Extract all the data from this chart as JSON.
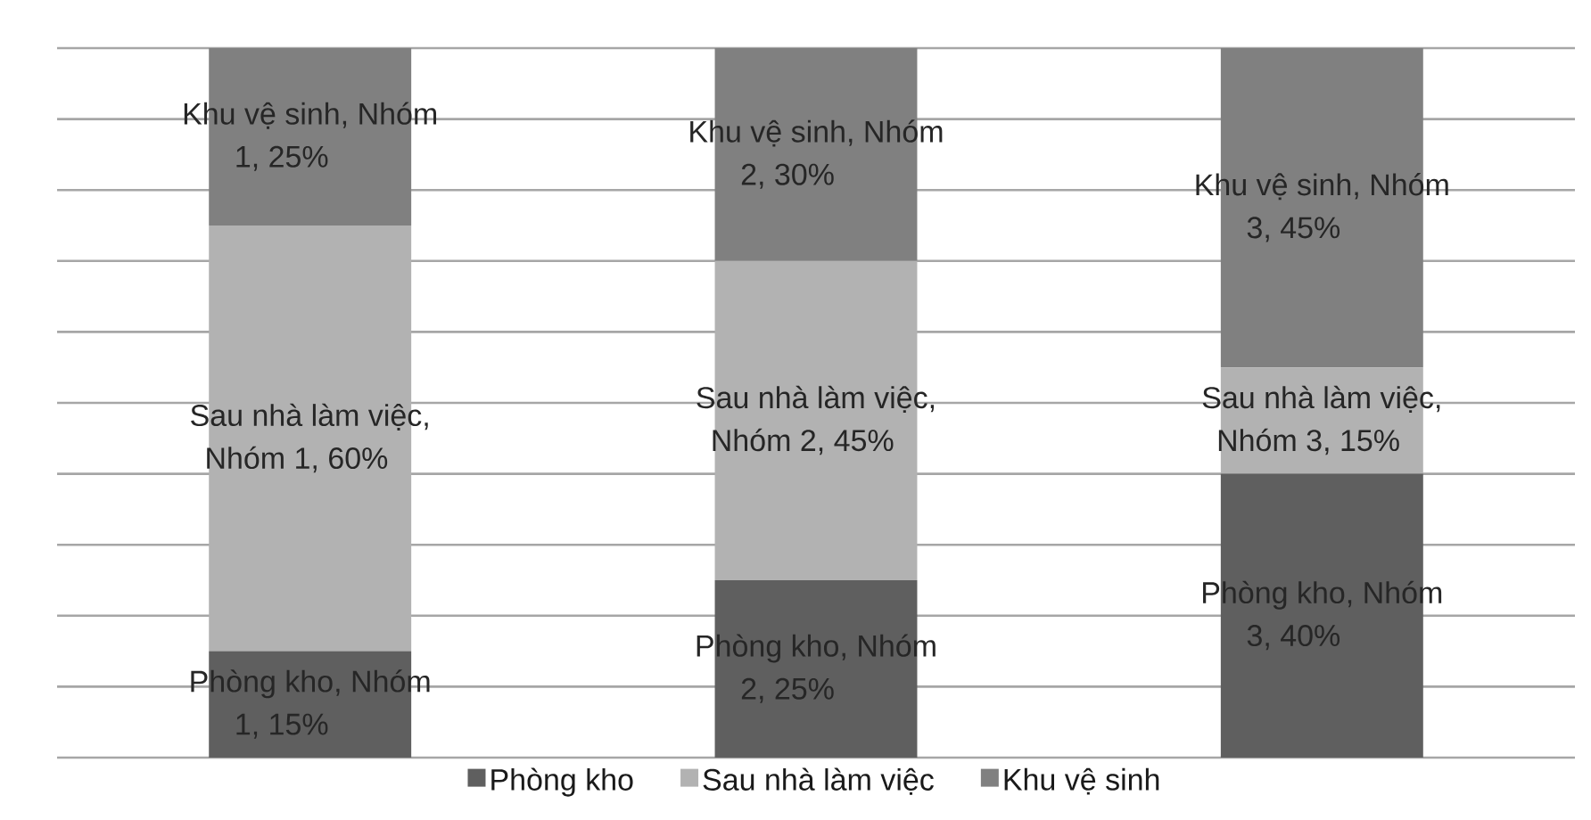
{
  "chart_data": {
    "type": "bar",
    "stacked": true,
    "categories": [
      null,
      null,
      null
    ],
    "series": [
      {
        "name": "Phòng kho",
        "color": "#5f5f5f",
        "values": [
          15,
          25,
          40
        ],
        "value_labels": [
          "Phòng kho, Nhóm 1, 15%",
          "Phòng kho, Nhóm 2, 25%",
          "Phòng kho, Nhóm 3, 40%"
        ]
      },
      {
        "name": "Sau nhà làm việc",
        "color": "#b2b2b2",
        "values": [
          60,
          45,
          15
        ],
        "value_labels": [
          "Sau nhà làm việc, Nhóm 1, 60%",
          "Sau nhà làm việc, Nhóm 2, 45%",
          "Sau nhà làm việc, Nhóm 3, 15%"
        ]
      },
      {
        "name": "Khu vệ sinh",
        "color": "#808080",
        "values": [
          25,
          30,
          45
        ],
        "value_labels": [
          "Khu vệ sinh, Nhóm 1, 25%",
          "Khu vệ sinh, Nhóm 2, 30%",
          "Khu vệ sinh, Nhóm 3, 45%"
        ]
      }
    ],
    "ylim": [
      0,
      100
    ],
    "yticks": [
      {
        "value": 0,
        "label": null
      },
      {
        "value": 10,
        "label": null
      },
      {
        "value": 20,
        "label": null
      },
      {
        "value": 30,
        "label": null
      },
      {
        "value": 40,
        "label": null
      },
      {
        "value": 50,
        "label": null
      },
      {
        "value": 60,
        "label": null
      },
      {
        "value": 70,
        "label": null
      },
      {
        "value": 80,
        "label": null
      },
      {
        "value": 90,
        "label": null
      },
      {
        "value": 100,
        "label": null
      }
    ],
    "grid": "y",
    "legend": "bottom"
  }
}
